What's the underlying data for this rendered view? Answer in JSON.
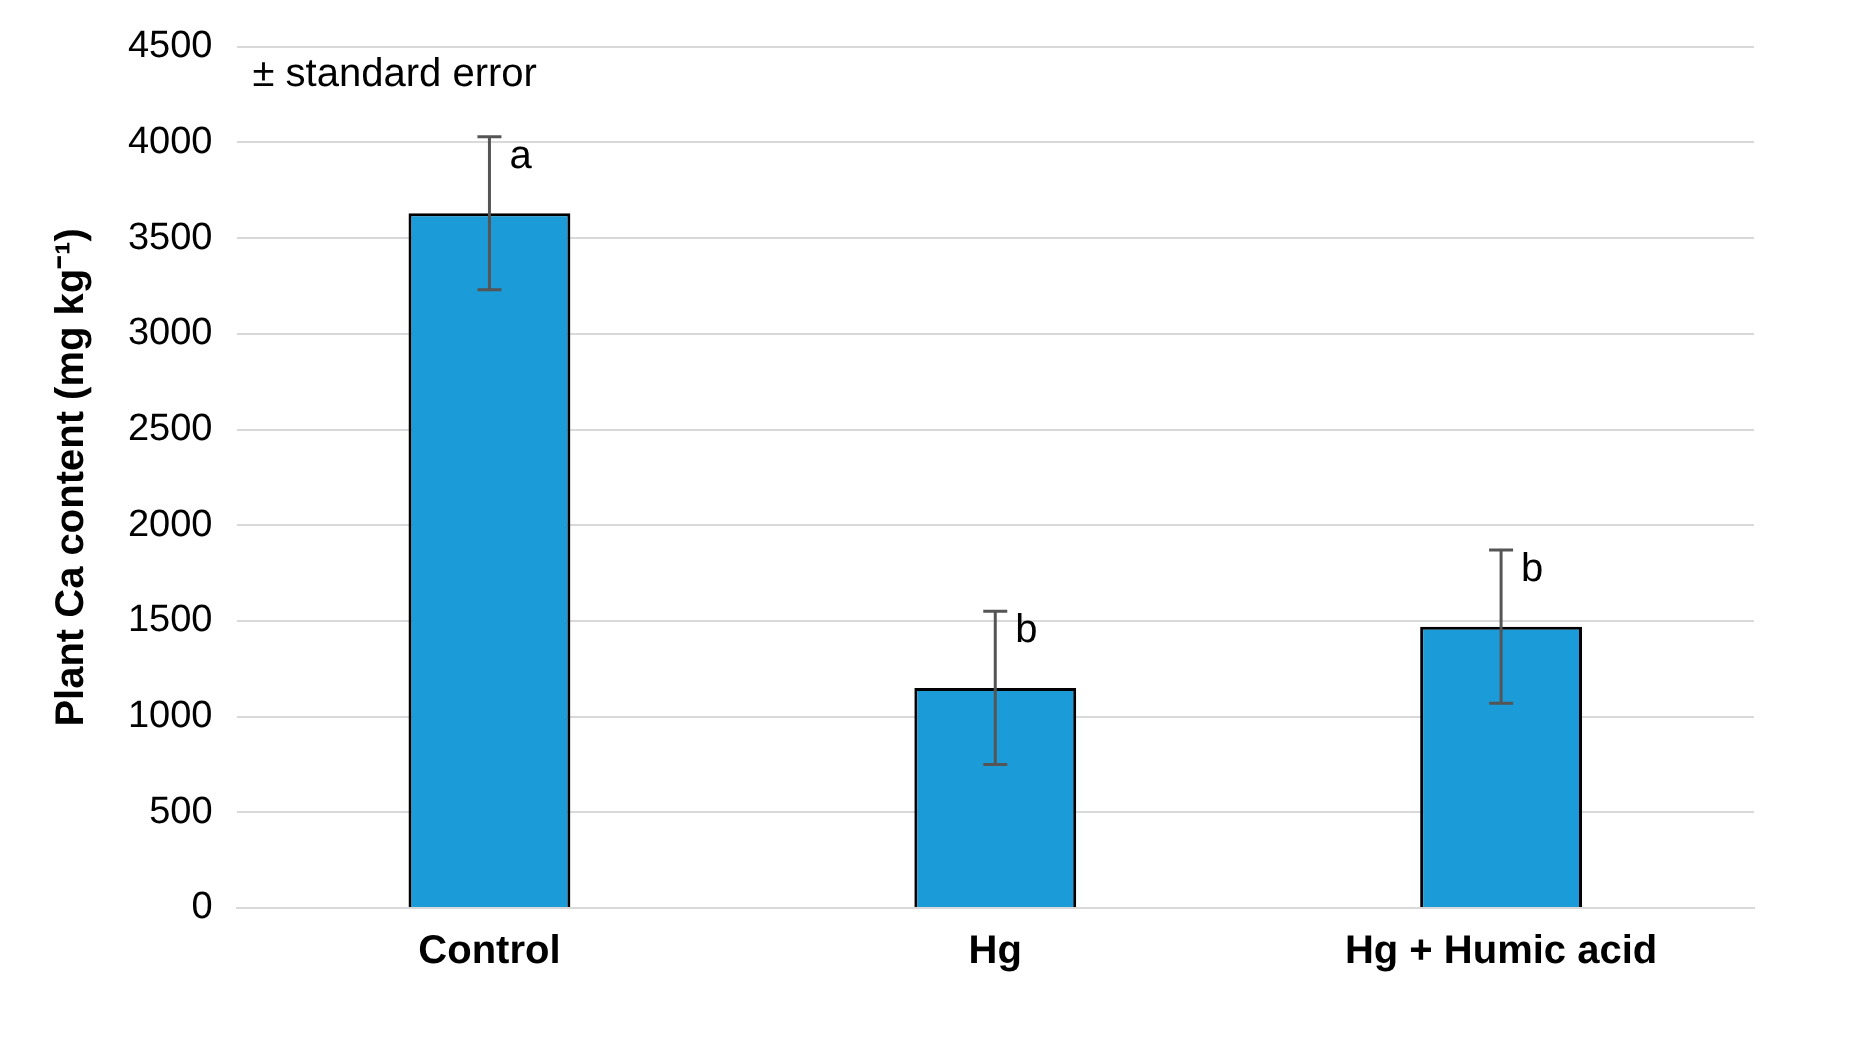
{
  "chart_data": {
    "type": "bar",
    "ylabel": "Plant Ca content (mg kg⁻¹)",
    "categories": [
      "Control",
      "Hg",
      "Hg + Humic acid"
    ],
    "values": [
      3630,
      1150,
      1470
    ],
    "errors": [
      400,
      400,
      400
    ],
    "color": "#1b9bd7",
    "ylim": [
      0,
      4500
    ],
    "yticks": [
      0,
      500,
      1000,
      1500,
      2000,
      2500,
      3000,
      3500,
      4000,
      4500
    ],
    "grid": "y",
    "legend": false,
    "annotations": [
      "± standard error",
      {
        "text": "a",
        "x": "Control",
        "y": 4030
      },
      {
        "text": "b",
        "x": "Hg",
        "y": 1550
      },
      {
        "text": "b",
        "x": "Hg + Humic acid",
        "y": 1870
      }
    ]
  }
}
